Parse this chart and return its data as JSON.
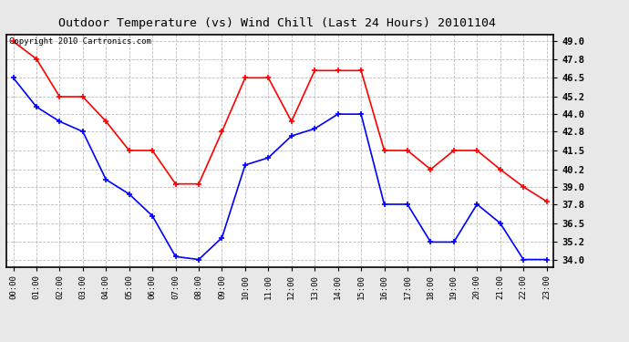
{
  "title": "Outdoor Temperature (vs) Wind Chill (Last 24 Hours) 20101104",
  "copyright": "Copyright 2010 Cartronics.com",
  "hours": [
    0,
    1,
    2,
    3,
    4,
    5,
    6,
    7,
    8,
    9,
    10,
    11,
    12,
    13,
    14,
    15,
    16,
    17,
    18,
    19,
    20,
    21,
    22,
    23
  ],
  "red_temp": [
    49.0,
    47.8,
    45.2,
    45.2,
    43.5,
    41.5,
    41.5,
    39.2,
    39.2,
    42.8,
    46.5,
    46.5,
    43.5,
    47.0,
    47.0,
    47.0,
    41.5,
    41.5,
    40.2,
    41.5,
    41.5,
    40.2,
    39.0,
    38.0
  ],
  "blue_chill": [
    46.5,
    44.5,
    43.5,
    42.8,
    39.5,
    38.5,
    37.0,
    34.2,
    34.0,
    35.5,
    40.5,
    41.0,
    42.5,
    43.0,
    44.0,
    44.0,
    37.8,
    37.8,
    35.2,
    35.2,
    37.8,
    36.5,
    34.0,
    34.0
  ],
  "ylim_min": 33.5,
  "ylim_max": 49.5,
  "yticks": [
    34.0,
    35.2,
    36.5,
    37.8,
    39.0,
    40.2,
    41.5,
    42.8,
    44.0,
    45.2,
    46.5,
    47.8,
    49.0
  ],
  "bg_color": "#e8e8e8",
  "plot_bg": "#ffffff",
  "red_color": "#ff0000",
  "blue_color": "#0000ff",
  "grid_color": "#bbbbbb",
  "title_color": "#000000",
  "title_fontsize": 9.5,
  "copyright_fontsize": 6.5
}
